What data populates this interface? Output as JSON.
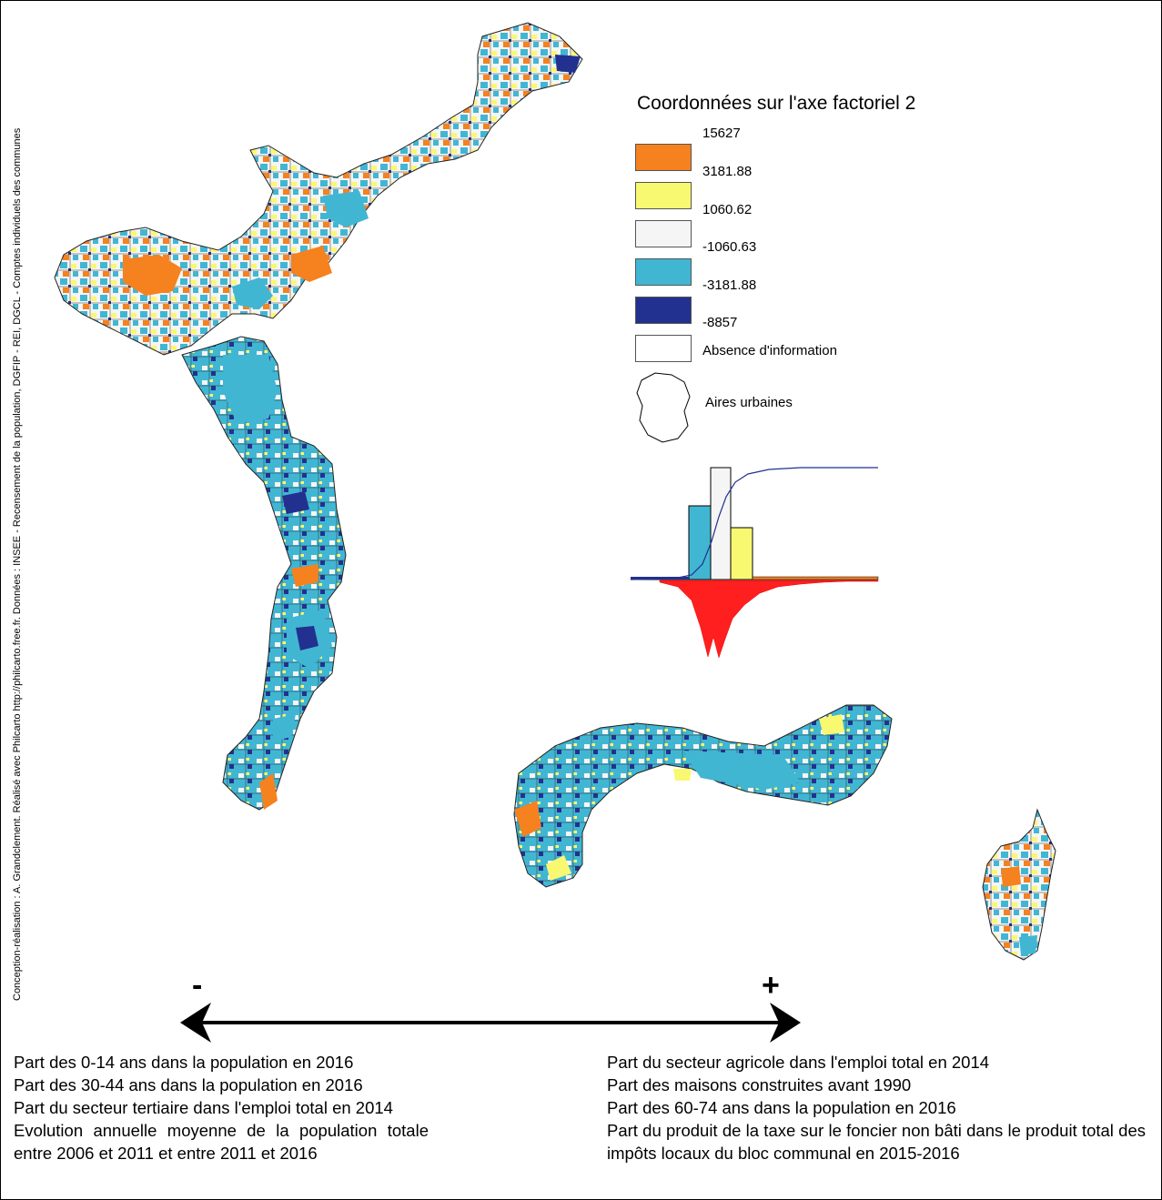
{
  "credit": "Conception-réalisation : A. Grandclement. Réalisé avec Philcarto http://philcarto.free.fr. Données : INSEE - Recensement de la population, DGFIP - REI, DGCL - Comptes individuels des communes",
  "legend": {
    "title": "Coordonnées sur l'axe factoriel 2",
    "breaks": [
      "15627",
      "3181.88",
      "1060.62",
      "-1060.63",
      "-3181.88",
      "-8857"
    ],
    "classes": [
      {
        "color": "#f5811f"
      },
      {
        "color": "#f9f871"
      },
      {
        "color": "#f5f5f5"
      },
      {
        "color": "#41b6d3"
      },
      {
        "color": "#22318f"
      },
      {
        "color": "#ffffff",
        "label": "Absence d'information"
      }
    ],
    "urban_label": "Aires urbaines"
  },
  "histogram": {
    "bars": [
      {
        "class": "-3181.88 to -1060.63",
        "relative_height": 0.63,
        "color": "#41b6d3"
      },
      {
        "class": "-1060.63 to 1060.62",
        "relative_height": 1.0,
        "color": "#f5f5f5"
      },
      {
        "class": "1060.62 to 3181.88",
        "relative_height": 0.44,
        "color": "#f9f871"
      }
    ]
  },
  "axis": {
    "minus": "-",
    "plus": "+",
    "negative_vars": [
      "Part des 0-14 ans dans la population en 2016",
      "Part des 30-44 ans dans la population en 2016",
      "Part du secteur tertiaire dans l'emploi total en 2014",
      "Evolution annuelle moyenne de la population totale entre 2006 et 2011 et entre 2011 et 2016"
    ],
    "positive_vars": [
      "Part du secteur agricole dans l'emploi total en 2014",
      "Part des maisons construites avant 1990",
      "Part des 60-74 ans dans la population en 2016",
      "Part du produit de la taxe sur le foncier non bâti dans le produit total des impôts locaux du bloc communal en 2015-2016"
    ]
  }
}
